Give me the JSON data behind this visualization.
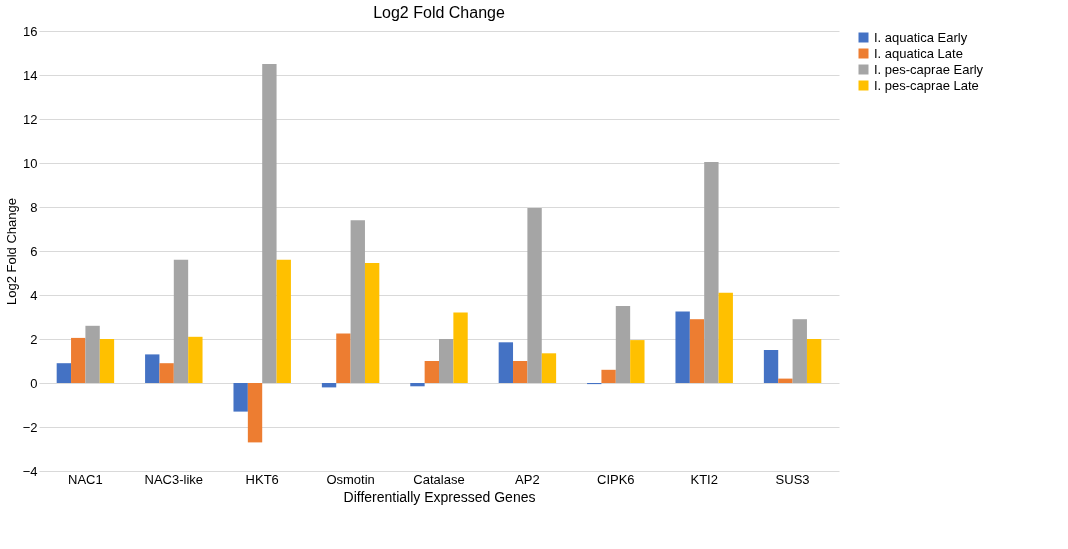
{
  "chart_data": {
    "type": "bar",
    "title": "Log2 Fold Change",
    "xlabel": "Differentially Expressed Genes",
    "ylabel": "Log2 Fold Change",
    "categories": [
      "NAC1",
      "NAC3-like",
      "HKT6",
      "Osmotin",
      "Catalase",
      "AP2",
      "CIPK6",
      "KTI2",
      "SUS3"
    ],
    "series": [
      {
        "name": "I. aquatica Early",
        "color": "#4472c4",
        "values": [
          0.9,
          1.3,
          -1.3,
          -0.2,
          -0.15,
          1.85,
          -0.05,
          3.25,
          1.5
        ]
      },
      {
        "name": "I. aquatica Late",
        "color": "#ed7d31",
        "values": [
          2.05,
          0.9,
          -2.7,
          2.25,
          1.0,
          1.0,
          0.6,
          2.9,
          0.2
        ]
      },
      {
        "name": "I. pes-caprae Early",
        "color": "#a5a5a5",
        "values": [
          2.6,
          5.6,
          14.5,
          7.4,
          2.0,
          7.95,
          3.5,
          10.05,
          2.9
        ]
      },
      {
        "name": "I. pes-caprae Late",
        "color": "#ffc000",
        "values": [
          2.0,
          2.1,
          5.6,
          5.45,
          3.2,
          1.35,
          1.95,
          4.1,
          2.0
        ]
      }
    ],
    "ylim": [
      -4,
      16
    ],
    "yticks": [
      -4,
      -2,
      0,
      2,
      4,
      6,
      8,
      10,
      12,
      14,
      16
    ],
    "grid": "y",
    "legend": "right"
  }
}
